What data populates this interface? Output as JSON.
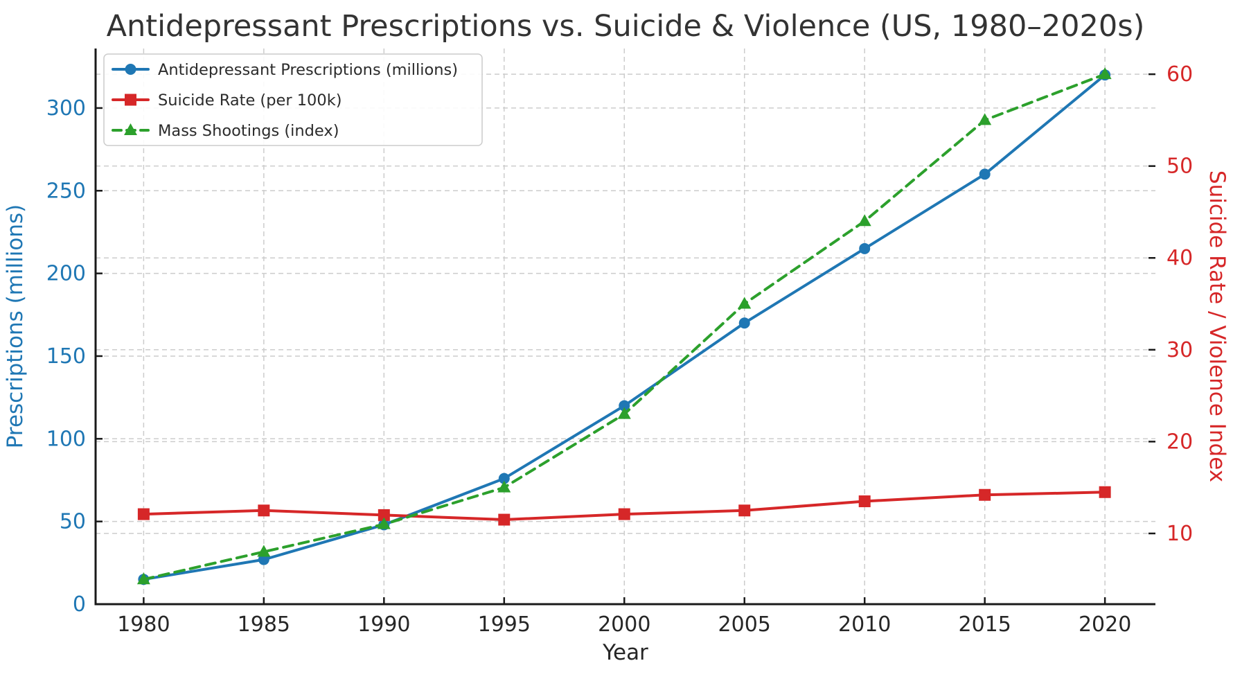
{
  "figure": {
    "background": "#ffffff"
  },
  "chart_data": {
    "type": "line",
    "title": "Antidepressant Prescriptions vs. Suicide & Violence (US, 1980–2020s)",
    "xlabel": "Year",
    "ylabel_left": "Prescriptions (millions)",
    "ylabel_right": "Suicide Rate / Violence Index",
    "x": [
      1980,
      1985,
      1990,
      1995,
      2000,
      2005,
      2010,
      2015,
      2020
    ],
    "x_ticks": [
      "1980",
      "1985",
      "1990",
      "1995",
      "2000",
      "2005",
      "2010",
      "2015",
      "2020"
    ],
    "left_ticks": [
      0,
      50,
      100,
      150,
      200,
      250,
      300
    ],
    "right_ticks": [
      10,
      20,
      30,
      40,
      50,
      60
    ],
    "xlim": [
      1978,
      2022.1
    ],
    "left_ylim": [
      0,
      336
    ],
    "right_ylim": [
      2.3,
      62.8
    ],
    "grid": true,
    "grid_color": "#cccccc",
    "legend_position": "upper-left",
    "axis_colors": {
      "left": "#1f77b4",
      "right": "#d62728",
      "x": "#262626"
    },
    "title_color": "#333333",
    "spine_color": "#1a1a1a",
    "legend_text_color": "#2b2b2b",
    "series": [
      {
        "id": "prescriptions",
        "name": "Antidepressant Prescriptions (millions)",
        "axis": "left",
        "color": "#1f77b4",
        "marker": "circle",
        "linestyle": "solid",
        "values": [
          15,
          27,
          48,
          76,
          120,
          170,
          215,
          260,
          320
        ]
      },
      {
        "id": "suicide-rate",
        "name": "Suicide Rate (per 100k)",
        "axis": "right",
        "color": "#d62728",
        "marker": "square",
        "linestyle": "solid",
        "values": [
          12.1,
          12.5,
          12.0,
          11.5,
          12.1,
          12.5,
          13.5,
          14.2,
          14.5
        ]
      },
      {
        "id": "mass-shootings",
        "name": "Mass Shootings (index)",
        "axis": "right",
        "color": "#2ca02c",
        "marker": "triangle-up",
        "linestyle": "dashed",
        "values": [
          5,
          8,
          11,
          15,
          23,
          35,
          44,
          55,
          60
        ]
      }
    ]
  }
}
